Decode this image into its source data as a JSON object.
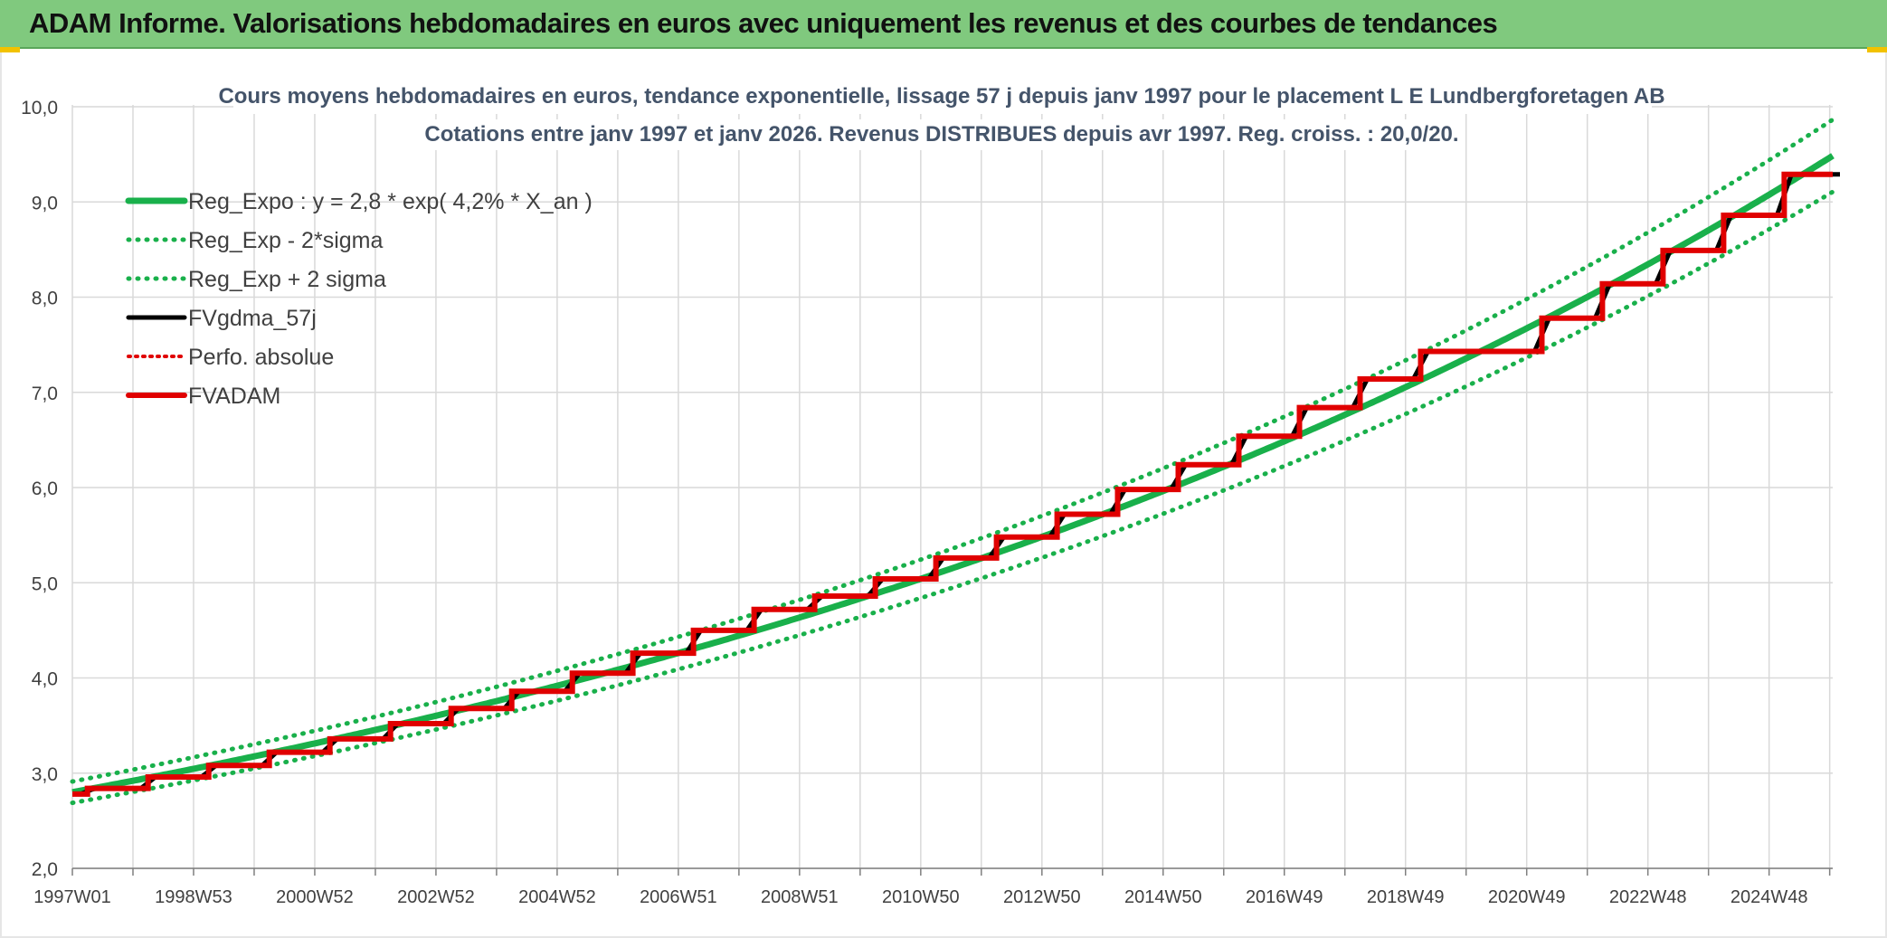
{
  "banner": {
    "title": "ADAM Informe. Valorisations hebdomadaires en euros avec uniquement les revenus et des courbes de tendances"
  },
  "colors": {
    "banner_bg": "#80c97e",
    "reg_expo": "#19b04b",
    "band": "#19b04b",
    "fvgdma": "#000000",
    "perfo": "#e00000",
    "fvadam": "#e00000",
    "grid": "#d9d9d9",
    "text": "#404040",
    "title_text": "#44546a"
  },
  "chart_data": {
    "type": "line",
    "title": "Cours moyens hebdomadaires en euros, tendance exponentielle, lissage 57 j depuis janv 1997 pour le placement L E Lundbergforetagen AB",
    "subtitle": "Cotations entre janv 1997 et janv 2026. Revenus DISTRIBUES depuis avr 1997. Reg. croiss. : 20,0/20.",
    "xlabel": "",
    "ylabel": "",
    "x_range": [
      1997.0,
      2026.05
    ],
    "ylim": [
      2.0,
      10.0
    ],
    "y_ticks": [
      "2,0",
      "3,0",
      "4,0",
      "5,0",
      "6,0",
      "7,0",
      "8,0",
      "9,0",
      "10,0"
    ],
    "x_ticks": [
      {
        "label": "1997W01",
        "x": 1997.0
      },
      {
        "label": "1998W53",
        "x": 1999.0
      },
      {
        "label": "2000W52",
        "x": 2001.0
      },
      {
        "label": "2002W52",
        "x": 2003.0
      },
      {
        "label": "2004W52",
        "x": 2005.0
      },
      {
        "label": "2006W51",
        "x": 2007.0
      },
      {
        "label": "2008W51",
        "x": 2009.0
      },
      {
        "label": "2010W50",
        "x": 2011.0
      },
      {
        "label": "2012W50",
        "x": 2013.0
      },
      {
        "label": "2014W50",
        "x": 2015.0
      },
      {
        "label": "2016W49",
        "x": 2017.0
      },
      {
        "label": "2018W49",
        "x": 2019.0
      },
      {
        "label": "2020W49",
        "x": 2021.0
      },
      {
        "label": "2022W48",
        "x": 2023.0
      },
      {
        "label": "2024W48",
        "x": 2025.0
      }
    ],
    "grid": true,
    "legend_position": "top-left",
    "regression": {
      "a": 2.8,
      "rate": 0.042,
      "x0": 1997.0,
      "band_factor": 0.04
    },
    "series": [
      {
        "name": "Reg_Expo : y = 2,8 * exp( 4,2% *  X_an )",
        "style": "solid-thick",
        "color": "#19b04b"
      },
      {
        "name": "Reg_Exp - 2*sigma",
        "style": "dotted-green",
        "color": "#19b04b"
      },
      {
        "name": "Reg_Exp + 2 sigma",
        "style": "dotted-green",
        "color": "#19b04b"
      },
      {
        "name": "FVgdma_57j",
        "style": "solid-black",
        "color": "#000000"
      },
      {
        "name": "Perfo. absolue",
        "style": "dotted-red",
        "color": "#e00000"
      },
      {
        "name": "FVADAM",
        "style": "solid-red",
        "color": "#e00000"
      }
    ],
    "fvadam_steps": [
      {
        "x": 1997.0,
        "y": 2.78
      },
      {
        "x": 1997.25,
        "y": 2.84
      },
      {
        "x": 1998.25,
        "y": 2.96
      },
      {
        "x": 1999.25,
        "y": 3.08
      },
      {
        "x": 2000.25,
        "y": 3.22
      },
      {
        "x": 2001.25,
        "y": 3.36
      },
      {
        "x": 2002.25,
        "y": 3.52
      },
      {
        "x": 2003.25,
        "y": 3.68
      },
      {
        "x": 2004.25,
        "y": 3.86
      },
      {
        "x": 2005.25,
        "y": 4.05
      },
      {
        "x": 2006.25,
        "y": 4.26
      },
      {
        "x": 2007.25,
        "y": 4.5
      },
      {
        "x": 2008.25,
        "y": 4.72
      },
      {
        "x": 2009.25,
        "y": 4.86
      },
      {
        "x": 2010.25,
        "y": 5.04
      },
      {
        "x": 2011.25,
        "y": 5.26
      },
      {
        "x": 2012.25,
        "y": 5.48
      },
      {
        "x": 2013.25,
        "y": 5.72
      },
      {
        "x": 2014.25,
        "y": 5.98
      },
      {
        "x": 2015.25,
        "y": 6.24
      },
      {
        "x": 2016.25,
        "y": 6.54
      },
      {
        "x": 2017.25,
        "y": 6.84
      },
      {
        "x": 2018.25,
        "y": 7.14
      },
      {
        "x": 2019.25,
        "y": 7.43
      },
      {
        "x": 2021.25,
        "y": 7.78
      },
      {
        "x": 2022.25,
        "y": 8.14
      },
      {
        "x": 2023.25,
        "y": 8.49
      },
      {
        "x": 2024.25,
        "y": 8.86
      },
      {
        "x": 2025.25,
        "y": 9.29
      },
      {
        "x": 2026.05,
        "y": 9.29
      }
    ]
  }
}
